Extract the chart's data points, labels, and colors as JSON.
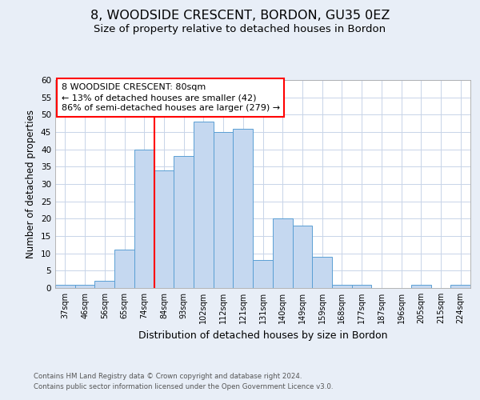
{
  "title": "8, WOODSIDE CRESCENT, BORDON, GU35 0EZ",
  "subtitle": "Size of property relative to detached houses in Bordon",
  "xlabel": "Distribution of detached houses by size in Bordon",
  "ylabel": "Number of detached properties",
  "footer_line1": "Contains HM Land Registry data © Crown copyright and database right 2024.",
  "footer_line2": "Contains public sector information licensed under the Open Government Licence v3.0.",
  "bin_labels": [
    "37sqm",
    "46sqm",
    "56sqm",
    "65sqm",
    "74sqm",
    "84sqm",
    "93sqm",
    "102sqm",
    "112sqm",
    "121sqm",
    "131sqm",
    "140sqm",
    "149sqm",
    "159sqm",
    "168sqm",
    "177sqm",
    "187sqm",
    "196sqm",
    "205sqm",
    "215sqm",
    "224sqm"
  ],
  "bin_counts": [
    1,
    1,
    2,
    11,
    40,
    34,
    38,
    48,
    45,
    46,
    8,
    20,
    18,
    9,
    1,
    1,
    0,
    0,
    1,
    0,
    1
  ],
  "bar_color": "#c5d8f0",
  "bar_edge_color": "#5a9fd4",
  "reference_line_x": 4.5,
  "reference_line_color": "red",
  "annotation_title": "8 WOODSIDE CRESCENT: 80sqm",
  "annotation_line1": "← 13% of detached houses are smaller (42)",
  "annotation_line2": "86% of semi-detached houses are larger (279) →",
  "annotation_box_color": "#ffffff",
  "annotation_box_edge": "red",
  "ylim": [
    0,
    60
  ],
  "yticks": [
    0,
    5,
    10,
    15,
    20,
    25,
    30,
    35,
    40,
    45,
    50,
    55,
    60
  ],
  "background_color": "#e8eef7",
  "plot_background": "#ffffff",
  "grid_color": "#c8d4e8",
  "title_fontsize": 11.5,
  "subtitle_fontsize": 9.5
}
